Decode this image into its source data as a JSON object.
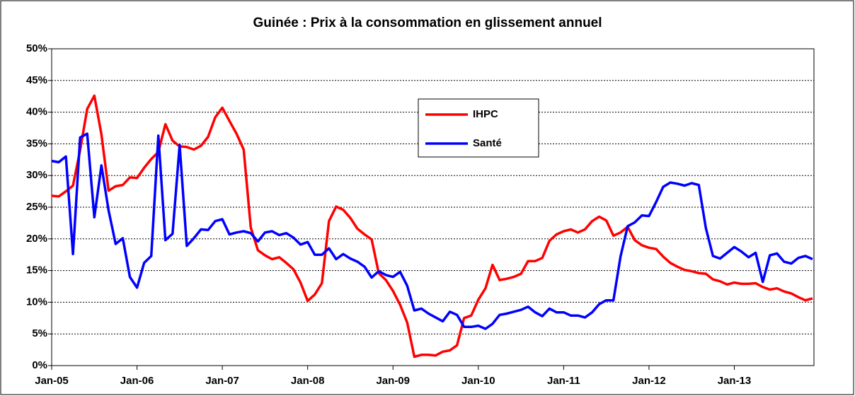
{
  "chart_data": {
    "type": "line",
    "title": "Guinée : Prix à la consommation en glissement annuel",
    "categories": [
      "Jan-05",
      null,
      null,
      null,
      null,
      null,
      null,
      null,
      null,
      null,
      null,
      null,
      "Jan-06",
      null,
      null,
      null,
      null,
      null,
      null,
      null,
      null,
      null,
      null,
      null,
      "Jan-07",
      null,
      null,
      null,
      null,
      null,
      null,
      null,
      null,
      null,
      null,
      null,
      "Jan-08",
      null,
      null,
      null,
      null,
      null,
      null,
      null,
      null,
      null,
      null,
      null,
      "Jan-09",
      null,
      null,
      null,
      null,
      null,
      null,
      null,
      null,
      null,
      null,
      null,
      "Jan-10",
      null,
      null,
      null,
      null,
      null,
      null,
      null,
      null,
      null,
      null,
      null,
      "Jan-11",
      null,
      null,
      null,
      null,
      null,
      null,
      null,
      null,
      null,
      null,
      null,
      "Jan-12",
      null,
      null,
      null,
      null,
      null,
      null,
      null,
      null,
      null,
      null,
      null,
      "Jan-13",
      null,
      null,
      null,
      null,
      null,
      null,
      null,
      null,
      null,
      null,
      null
    ],
    "series": [
      {
        "name": "IHPC",
        "color": "#ff0000",
        "values": [
          26.8,
          26.7,
          27.5,
          28.4,
          34,
          40.5,
          42.6,
          36.5,
          27.6,
          28.3,
          28.5,
          29.7,
          29.6,
          31.2,
          32.6,
          33.7,
          38.1,
          35.5,
          34.6,
          34.5,
          34.1,
          34.7,
          36.1,
          39.2,
          40.7,
          38.6,
          36.6,
          34.1,
          21.8,
          18.2,
          17.4,
          16.8,
          17.1,
          16.2,
          15.2,
          13.1,
          10.2,
          11.2,
          13.0,
          22.8,
          25.1,
          24.6,
          23.3,
          21.6,
          20.7,
          19.9,
          14.6,
          13.5,
          11.8,
          9.6,
          6.8,
          1.4,
          1.7,
          1.7,
          1.6,
          2.2,
          2.4,
          3.2,
          7.5,
          7.9,
          10.4,
          12.2,
          15.9,
          13.5,
          13.7,
          14.0,
          14.5,
          16.5,
          16.5,
          17.0,
          19.7,
          20.7,
          21.2,
          21.5,
          21.0,
          21.5,
          22.8,
          23.5,
          22.9,
          20.5,
          21.0,
          21.9,
          19.8,
          19.0,
          18.6,
          18.4,
          17.2,
          16.2,
          15.6,
          15.1,
          14.9,
          14.6,
          14.5,
          13.6,
          13.3,
          12.8,
          13.1,
          12.9,
          12.9,
          13.0,
          12.4,
          12.0,
          12.2,
          11.7,
          11.4,
          10.8,
          10.3,
          10.6
        ]
      },
      {
        "name": "Santé",
        "color": "#0000ff",
        "values": [
          32.3,
          32.1,
          33.0,
          17.6,
          36.0,
          36.6,
          23.4,
          31.6,
          24.5,
          19.2,
          20.1,
          14.0,
          12.3,
          16.2,
          17.3,
          36.3,
          19.8,
          20.8,
          34.8,
          18.9,
          20.1,
          21.5,
          21.4,
          22.8,
          23.1,
          20.7,
          21.0,
          21.2,
          20.9,
          19.6,
          21.0,
          21.2,
          20.6,
          20.9,
          20.2,
          19.1,
          19.5,
          17.5,
          17.5,
          18.5,
          16.8,
          17.6,
          16.9,
          16.4,
          15.6,
          13.9,
          14.9,
          14.3,
          14.0,
          14.8,
          12.6,
          8.7,
          9.0,
          8.2,
          7.6,
          7.0,
          8.5,
          8.0,
          6.1,
          6.1,
          6.3,
          5.8,
          6.6,
          8.0,
          8.2,
          8.5,
          8.8,
          9.3,
          8.4,
          7.8,
          9.0,
          8.4,
          8.4,
          7.9,
          7.9,
          7.6,
          8.4,
          9.7,
          10.3,
          10.3,
          17.2,
          22.0,
          22.6,
          23.7,
          23.6,
          25.8,
          28.2,
          28.9,
          28.7,
          28.4,
          28.8,
          28.5,
          21.7,
          17.3,
          16.9,
          17.8,
          18.7,
          18.0,
          17.1,
          17.8,
          13.2,
          17.4,
          17.7,
          16.4,
          16.1,
          17.0,
          17.3,
          16.8
        ]
      }
    ],
    "ylim": [
      0,
      50
    ],
    "yticks": [
      {
        "value": 0,
        "label": "0%"
      },
      {
        "value": 5,
        "label": "5%"
      },
      {
        "value": 10,
        "label": "10%"
      },
      {
        "value": 15,
        "label": "15%"
      },
      {
        "value": 20,
        "label": "20%"
      },
      {
        "value": 25,
        "label": "25%"
      },
      {
        "value": 30,
        "label": "30%"
      },
      {
        "value": 35,
        "label": "35%"
      },
      {
        "value": 40,
        "label": "40%"
      },
      {
        "value": 45,
        "label": "45%"
      },
      {
        "value": 50,
        "label": "50%"
      }
    ],
    "grid": true
  }
}
